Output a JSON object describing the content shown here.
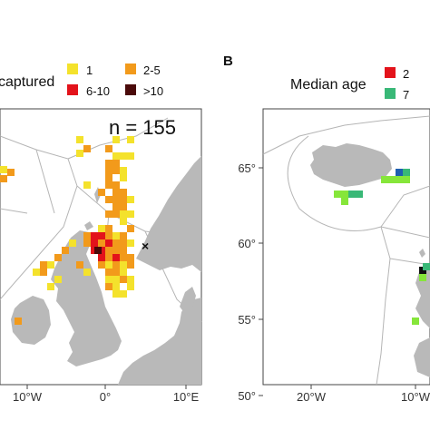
{
  "panel_a": {
    "legend_title": "captured",
    "legend_items": [
      {
        "label": "1",
        "color": "#f4e22c"
      },
      {
        "label": "2-5",
        "color": "#f29a1b"
      },
      {
        "label": "6-10",
        "color": "#e3131b"
      },
      {
        "label": ">10",
        "color": "#4a0a0a"
      }
    ],
    "n_label": "n = 155",
    "x_ticks": [
      "10°W",
      "0°",
      "10°E"
    ],
    "marker_symbol": "×",
    "marker_color": "#d81b2a"
  },
  "panel_b": {
    "letter": "B",
    "legend_title": "Median age",
    "legend_items": [
      {
        "label": "2",
        "color": "#e3131b"
      },
      {
        "label": "7",
        "color": "#39b877"
      }
    ],
    "x_ticks": [
      "20°W",
      "10°W"
    ],
    "y_ticks": [
      "65°",
      "60°",
      "55°",
      "50°"
    ]
  },
  "colors": {
    "land": "#b9b9b9",
    "sea": "#ffffff",
    "eez_border": "#b5b5b5",
    "age_blue": "#1f5fb0",
    "age_lime": "#86e63a",
    "age_black": "#111111"
  }
}
